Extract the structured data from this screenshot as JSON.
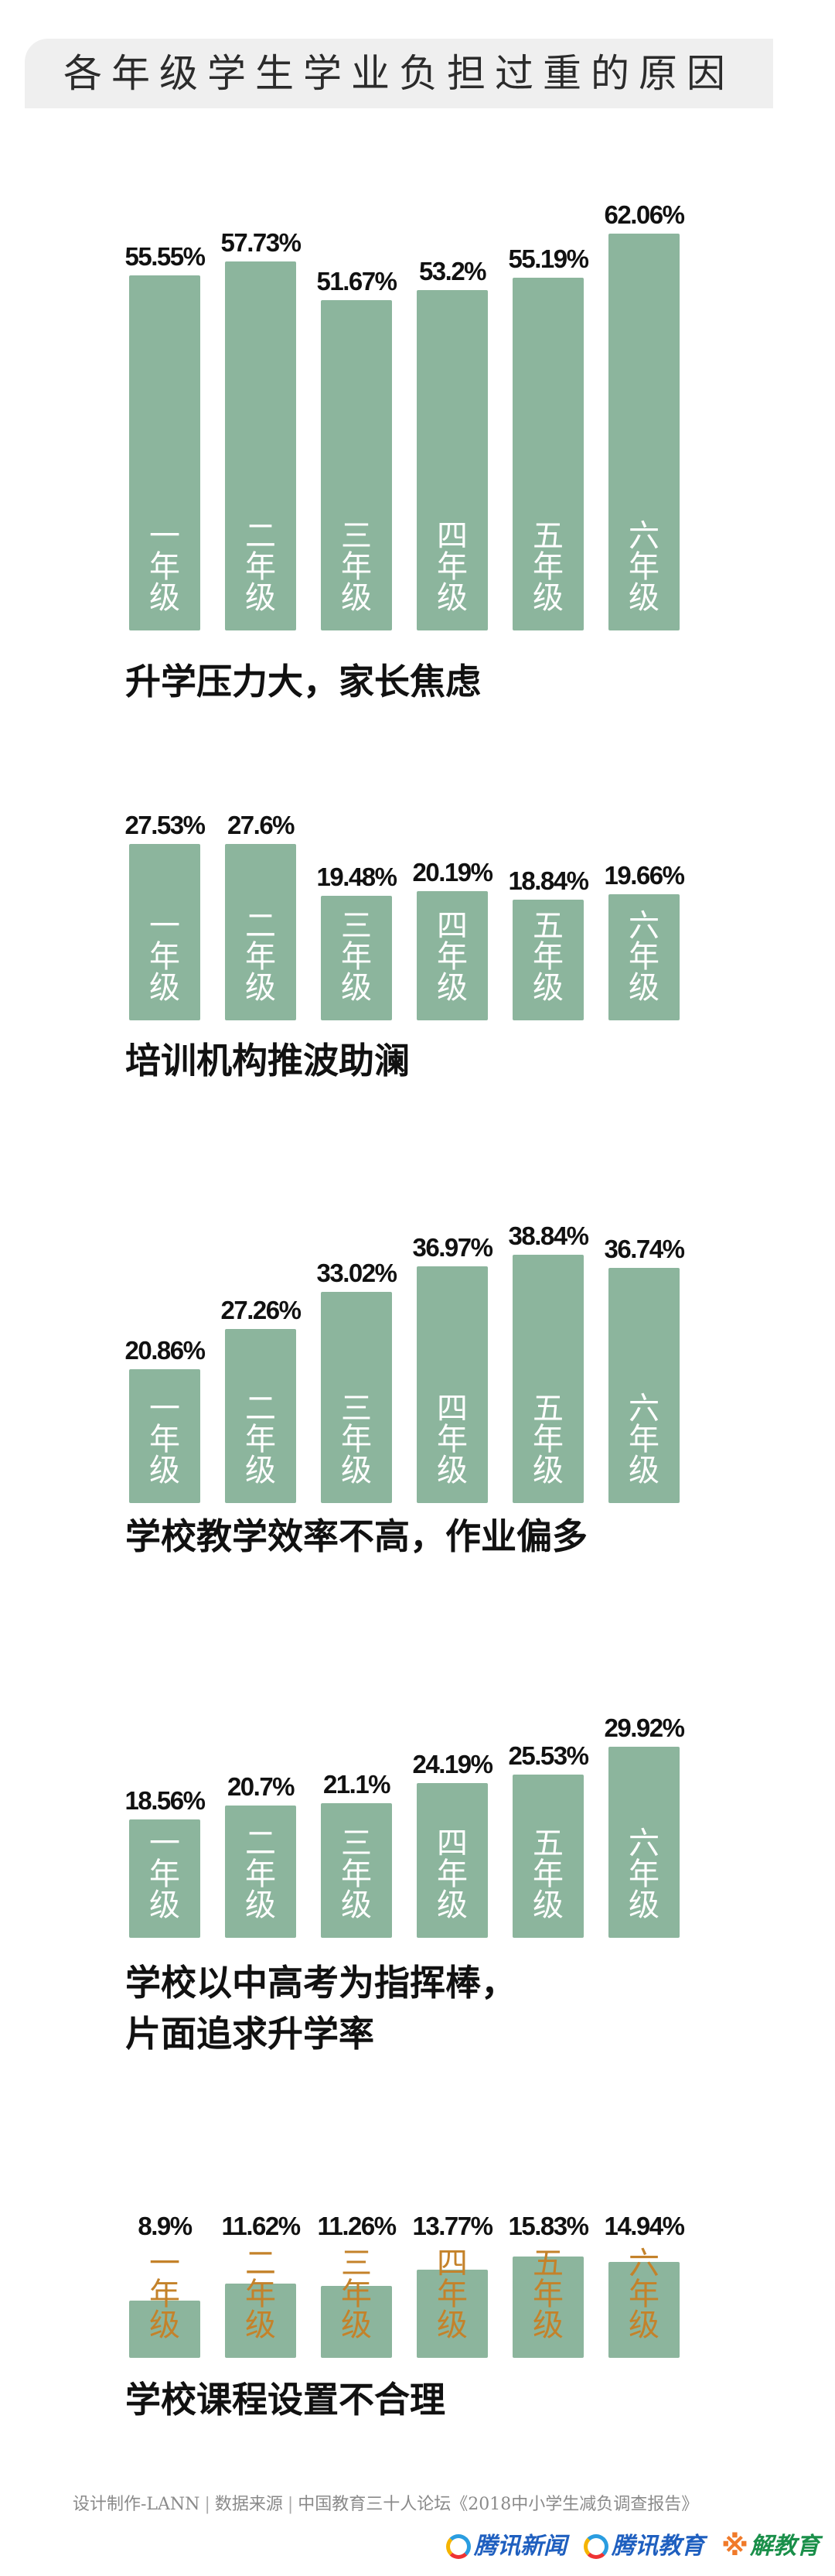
{
  "title": "各年级学生学业负担过重的原因",
  "colors": {
    "bar": "#8cb59d",
    "grade_label": "#ffffff",
    "grade_label_last": "#c4822a",
    "title_band": "#efefef"
  },
  "chart_data": [
    {
      "type": "bar",
      "title": "升学压力大，家长焦虑",
      "categories": [
        "一年级",
        "二年级",
        "三年级",
        "四年级",
        "五年级",
        "六年级"
      ],
      "values": [
        55.55,
        57.73,
        51.67,
        53.2,
        55.19,
        62.06
      ],
      "labels": [
        "55.55%",
        "57.73%",
        "51.67%",
        "53.2%",
        "55.19%",
        "62.06%"
      ],
      "unit": "%"
    },
    {
      "type": "bar",
      "title": "培训机构推波助澜",
      "categories": [
        "一年级",
        "二年级",
        "三年级",
        "四年级",
        "五年级",
        "六年级"
      ],
      "values": [
        27.53,
        27.6,
        19.48,
        20.19,
        18.84,
        19.66
      ],
      "labels": [
        "27.53%",
        "27.6%",
        "19.48%",
        "20.19%",
        "18.84%",
        "19.66%"
      ],
      "unit": "%"
    },
    {
      "type": "bar",
      "title": "学校教学效率不高，作业偏多",
      "categories": [
        "一年级",
        "二年级",
        "三年级",
        "四年级",
        "五年级",
        "六年级"
      ],
      "values": [
        20.86,
        27.26,
        33.02,
        36.97,
        38.84,
        36.74
      ],
      "labels": [
        "20.86%",
        "27.26%",
        "33.02%",
        "36.97%",
        "38.84%",
        "36.74%"
      ],
      "unit": "%"
    },
    {
      "type": "bar",
      "title": "学校以中高考为指挥棒，",
      "title_line2": "片面追求升学率",
      "categories": [
        "一年级",
        "二年级",
        "三年级",
        "四年级",
        "五年级",
        "六年级"
      ],
      "values": [
        18.56,
        20.7,
        21.1,
        24.19,
        25.53,
        29.92
      ],
      "labels": [
        "18.56%",
        "20.7%",
        "21.1%",
        "24.19%",
        "25.53%",
        "29.92%"
      ],
      "unit": "%"
    },
    {
      "type": "bar",
      "title": "学校课程设置不合理",
      "categories": [
        "一年级",
        "二年级",
        "三年级",
        "四年级",
        "五年级",
        "六年级"
      ],
      "values": [
        8.9,
        11.62,
        11.26,
        13.77,
        15.83,
        14.94
      ],
      "labels": [
        "8.9%",
        "11.62%",
        "11.26%",
        "13.77%",
        "15.83%",
        "14.94%"
      ],
      "unit": "%"
    }
  ],
  "footer": {
    "credit": "设计制作-LANN",
    "source_label": "数据来源",
    "source": "中国教育三十人论坛《2018中小学生减负调查报告》",
    "logos": [
      "腾讯新闻",
      "腾讯教育",
      "解教育"
    ]
  }
}
